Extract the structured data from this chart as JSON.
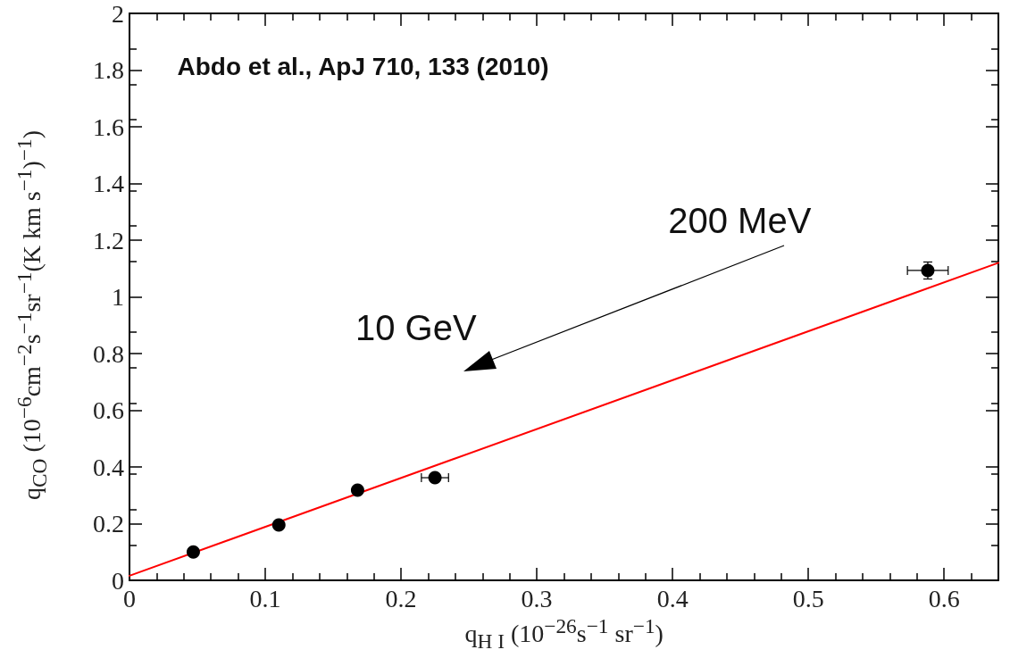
{
  "chart_data": {
    "type": "scatter",
    "xlabel": "q$_{H I}$ (10$^{−26}$s$^{−1}$ sr$^{−1}$)",
    "ylabel": "q$_{CO}$ (10$^{−6}$cm$^{−2}$s$^{−1}$sr$^{−1}$(K km s$^{−1}$)$^{−1}$)",
    "annotations": [
      "Abdo et al., ApJ 710, 133 (2010)",
      "200 MeV",
      "10 GeV"
    ],
    "xlim": [
      0,
      0.64
    ],
    "xticks": [
      0,
      0.1,
      0.2,
      0.3,
      0.4,
      0.5,
      0.6
    ],
    "ylim": [
      0,
      2
    ],
    "yticks": [
      0,
      0.2,
      0.4,
      0.6,
      0.8,
      1,
      1.2,
      1.4,
      1.6,
      1.8,
      2
    ],
    "grid": false,
    "marker": "circle",
    "series": [
      {
        "color": "#000000",
        "x": [
          0.047,
          0.11,
          0.168,
          0.225,
          0.588
        ],
        "values": [
          0.1,
          0.195,
          0.318,
          0.362,
          1.093
        ],
        "errors": [
          null,
          null,
          null,
          null,
          0.03
        ],
        "xerrors": [
          null,
          null,
          null,
          0.01,
          0.015
        ]
      },
      {
        "type": "line",
        "color": "#ff0000",
        "marker": "none",
        "line_style": "solid",
        "x": [
          0,
          0.64
        ],
        "values": [
          0.016,
          1.12
        ]
      }
    ]
  }
}
